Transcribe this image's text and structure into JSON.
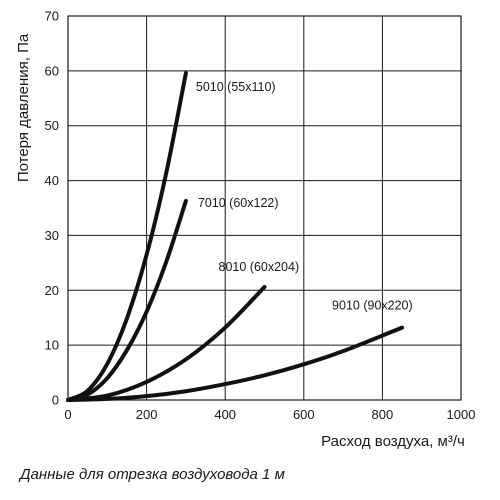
{
  "chart_data": {
    "type": "line",
    "xlabel": "Расход воздуха, м³/ч",
    "ylabel": "Потеря давления, Па",
    "xlim": [
      0,
      1000
    ],
    "ylim": [
      0,
      70
    ],
    "xticks": [
      0,
      200,
      400,
      600,
      800,
      1000
    ],
    "yticks": [
      0,
      10,
      20,
      30,
      40,
      50,
      60,
      70
    ],
    "grid": true,
    "line_color": "#111111",
    "series": [
      {
        "name": "5010 (55x110)",
        "x": [
          0,
          50,
          100,
          150,
          200,
          250,
          300
        ],
        "y": [
          0,
          1.7,
          6.6,
          14.9,
          26.5,
          41.4,
          59.6
        ]
      },
      {
        "name": "7010 (60x122)",
        "x": [
          0,
          50,
          100,
          150,
          200,
          250,
          300
        ],
        "y": [
          0,
          1.0,
          4.0,
          9.1,
          16.1,
          25.2,
          36.3
        ]
      },
      {
        "name": "8010 (60x204)",
        "x": [
          0,
          100,
          200,
          300,
          400,
          500
        ],
        "y": [
          0,
          0.8,
          3.3,
          7.4,
          13.2,
          20.6
        ]
      },
      {
        "name": "9010 (90x220)",
        "x": [
          0,
          100,
          200,
          300,
          400,
          500,
          600,
          700,
          850
        ],
        "y": [
          0,
          0.2,
          0.7,
          1.6,
          2.9,
          4.5,
          6.5,
          8.9,
          13.2
        ]
      }
    ]
  },
  "footnote": "Данные для отрезка воздуховода 1 м"
}
